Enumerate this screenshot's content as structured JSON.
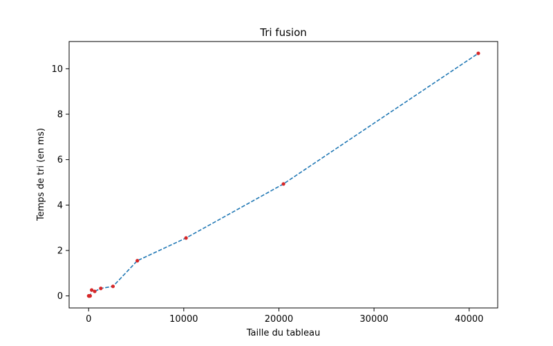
{
  "chart_data": {
    "type": "line",
    "title": "Tri fusion",
    "xlabel": "Taille du tableau",
    "ylabel": "Temps de tri (en ms)",
    "xlim": [
      -2050,
      43000
    ],
    "ylim": [
      -0.53,
      11.2
    ],
    "xticks": [
      0,
      10000,
      20000,
      30000,
      40000
    ],
    "yticks": [
      0,
      2,
      4,
      6,
      8,
      10
    ],
    "grid": false,
    "legend": "none",
    "line_color": "#1f77b4",
    "line_style": "dashed",
    "marker_color": "#d62728",
    "series": [
      {
        "x": [
          10,
          20,
          40,
          80,
          160,
          320,
          640,
          1280,
          2560,
          5120,
          10240,
          20480,
          40960
        ],
        "y": [
          0.0,
          0.0,
          0.0,
          0.0,
          0.0,
          0.26,
          0.2,
          0.33,
          0.42,
          1.55,
          2.55,
          4.93,
          10.68
        ]
      }
    ]
  }
}
